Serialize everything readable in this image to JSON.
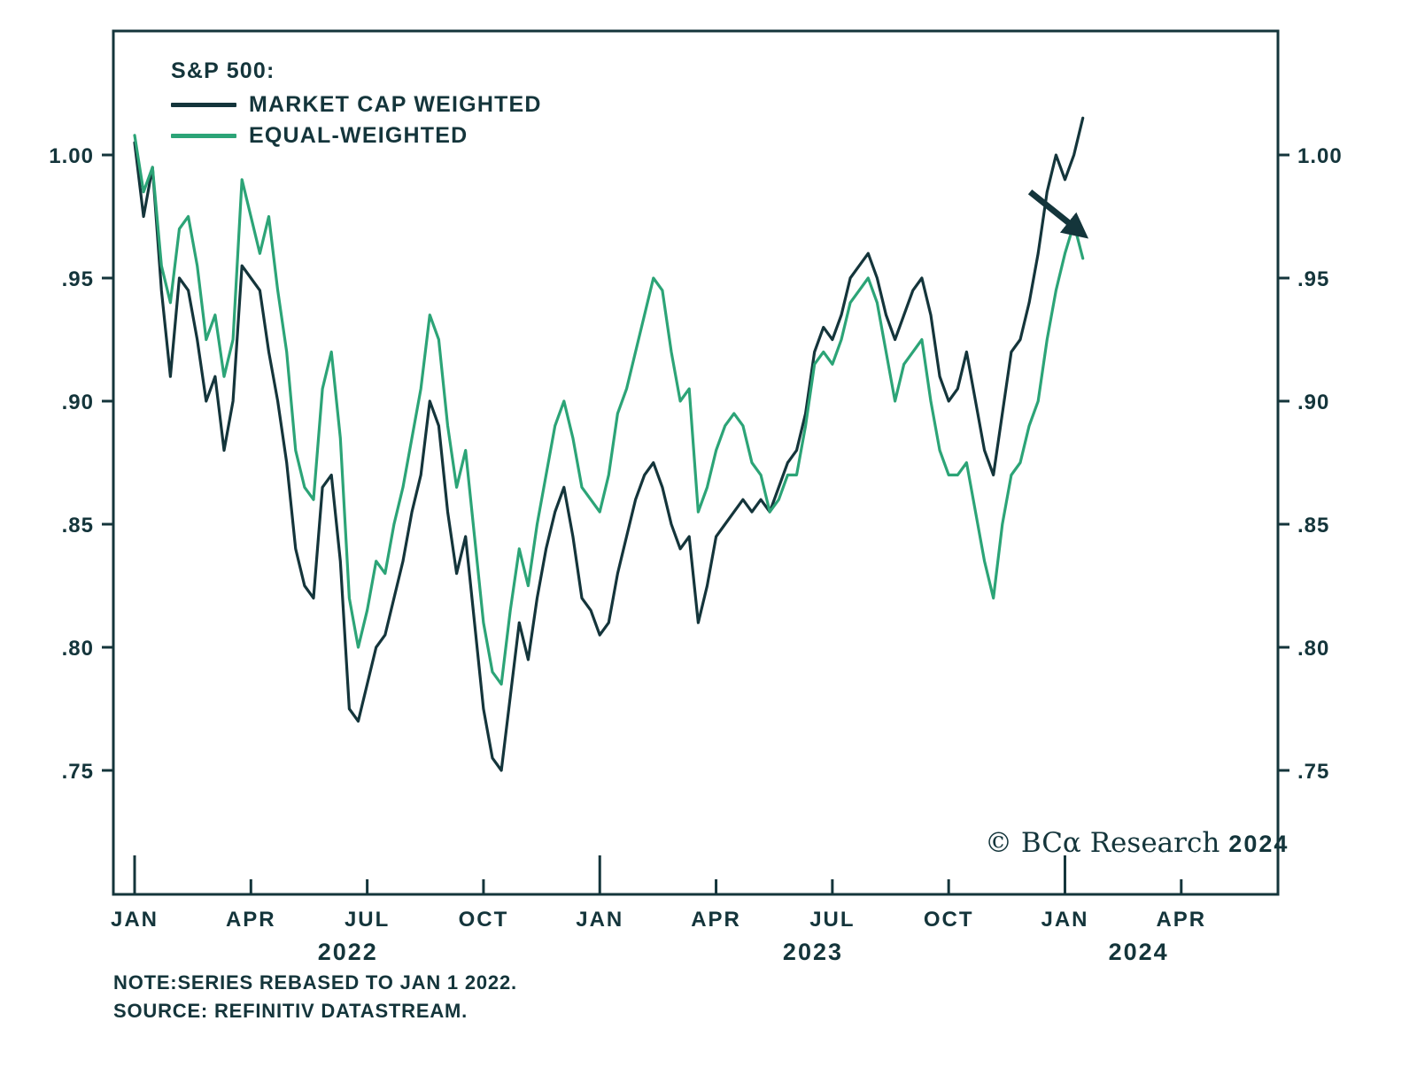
{
  "legend": {
    "heading": "S&P 500:",
    "items": [
      {
        "label": "MARKET CAP WEIGHTED",
        "color": "#14353b"
      },
      {
        "label": "EQUAL-WEIGHTED",
        "color": "#2ca477"
      }
    ]
  },
  "copyright": {
    "text": "© BCα Research",
    "year": "2024"
  },
  "notes": {
    "line1": "NOTE:SERIES REBASED TO JAN 1 2022.",
    "line2": "SOURCE: REFINITIV DATASTREAM."
  },
  "chart_data": {
    "type": "line",
    "title": "S&P 500: Market Cap Weighted vs Equal-Weighted, rebased to Jan 1 2022",
    "x_unit": "months since Jan 1 2022 (series sampled weekly)",
    "x_start": 0,
    "x_step_months": 0.23077,
    "xlim": [
      -0.55,
      29.5
    ],
    "ylim": [
      0.698,
      1.052
    ],
    "grid": false,
    "legend_position": "top-left",
    "y_ticks": [
      {
        "v": 1.0,
        "label": "1.00"
      },
      {
        "v": 0.95,
        "label": ".95"
      },
      {
        "v": 0.9,
        "label": ".90"
      },
      {
        "v": 0.85,
        "label": ".85"
      },
      {
        "v": 0.8,
        "label": ".80"
      },
      {
        "v": 0.75,
        "label": ".75"
      }
    ],
    "x_ticks": [
      {
        "m": 0,
        "label": "JAN"
      },
      {
        "m": 3,
        "label": "APR"
      },
      {
        "m": 6,
        "label": "JUL"
      },
      {
        "m": 9,
        "label": "OCT"
      },
      {
        "m": 12,
        "label": "JAN"
      },
      {
        "m": 15,
        "label": "APR"
      },
      {
        "m": 18,
        "label": "JUL"
      },
      {
        "m": 21,
        "label": "OCT"
      },
      {
        "m": 24,
        "label": "JAN"
      },
      {
        "m": 27,
        "label": "APR"
      }
    ],
    "year_labels": [
      {
        "m": 5.5,
        "label": "2022"
      },
      {
        "m": 17.5,
        "label": "2023"
      },
      {
        "m": 25.9,
        "label": "2024"
      }
    ],
    "series": [
      {
        "name": "MARKET CAP WEIGHTED",
        "color": "#14353b",
        "values": [
          1.005,
          0.975,
          0.995,
          0.945,
          0.91,
          0.95,
          0.945,
          0.925,
          0.9,
          0.91,
          0.88,
          0.9,
          0.955,
          0.95,
          0.945,
          0.92,
          0.9,
          0.875,
          0.84,
          0.825,
          0.82,
          0.865,
          0.87,
          0.835,
          0.775,
          0.77,
          0.785,
          0.8,
          0.805,
          0.82,
          0.835,
          0.855,
          0.87,
          0.9,
          0.89,
          0.855,
          0.83,
          0.845,
          0.81,
          0.775,
          0.755,
          0.75,
          0.78,
          0.81,
          0.795,
          0.82,
          0.84,
          0.855,
          0.865,
          0.845,
          0.82,
          0.815,
          0.805,
          0.81,
          0.83,
          0.845,
          0.86,
          0.87,
          0.875,
          0.865,
          0.85,
          0.84,
          0.845,
          0.81,
          0.825,
          0.845,
          0.85,
          0.855,
          0.86,
          0.855,
          0.86,
          0.855,
          0.865,
          0.875,
          0.88,
          0.895,
          0.92,
          0.93,
          0.925,
          0.935,
          0.95,
          0.955,
          0.96,
          0.95,
          0.935,
          0.925,
          0.935,
          0.945,
          0.95,
          0.935,
          0.91,
          0.9,
          0.905,
          0.92,
          0.9,
          0.88,
          0.87,
          0.895,
          0.92,
          0.925,
          0.94,
          0.96,
          0.985,
          1.0,
          0.99,
          1.0,
          1.015
        ]
      },
      {
        "name": "EQUAL-WEIGHTED",
        "color": "#2ca477",
        "values": [
          1.008,
          0.985,
          0.995,
          0.955,
          0.94,
          0.97,
          0.975,
          0.955,
          0.925,
          0.935,
          0.91,
          0.925,
          0.99,
          0.975,
          0.96,
          0.975,
          0.945,
          0.92,
          0.88,
          0.865,
          0.86,
          0.905,
          0.92,
          0.885,
          0.82,
          0.8,
          0.815,
          0.835,
          0.83,
          0.85,
          0.865,
          0.885,
          0.905,
          0.935,
          0.925,
          0.89,
          0.865,
          0.88,
          0.845,
          0.81,
          0.79,
          0.785,
          0.815,
          0.84,
          0.825,
          0.85,
          0.87,
          0.89,
          0.9,
          0.885,
          0.865,
          0.86,
          0.855,
          0.87,
          0.895,
          0.905,
          0.92,
          0.935,
          0.95,
          0.945,
          0.92,
          0.9,
          0.905,
          0.855,
          0.865,
          0.88,
          0.89,
          0.895,
          0.89,
          0.875,
          0.87,
          0.855,
          0.86,
          0.87,
          0.87,
          0.89,
          0.915,
          0.92,
          0.915,
          0.925,
          0.94,
          0.945,
          0.95,
          0.94,
          0.92,
          0.9,
          0.915,
          0.92,
          0.925,
          0.9,
          0.88,
          0.87,
          0.87,
          0.875,
          0.855,
          0.835,
          0.82,
          0.85,
          0.87,
          0.875,
          0.89,
          0.9,
          0.925,
          0.945,
          0.96,
          0.972,
          0.958
        ]
      }
    ],
    "annotation_arrow": {
      "from_m": 23.1,
      "from_v": 0.985,
      "to_m": 24.45,
      "to_v": 0.968
    }
  }
}
